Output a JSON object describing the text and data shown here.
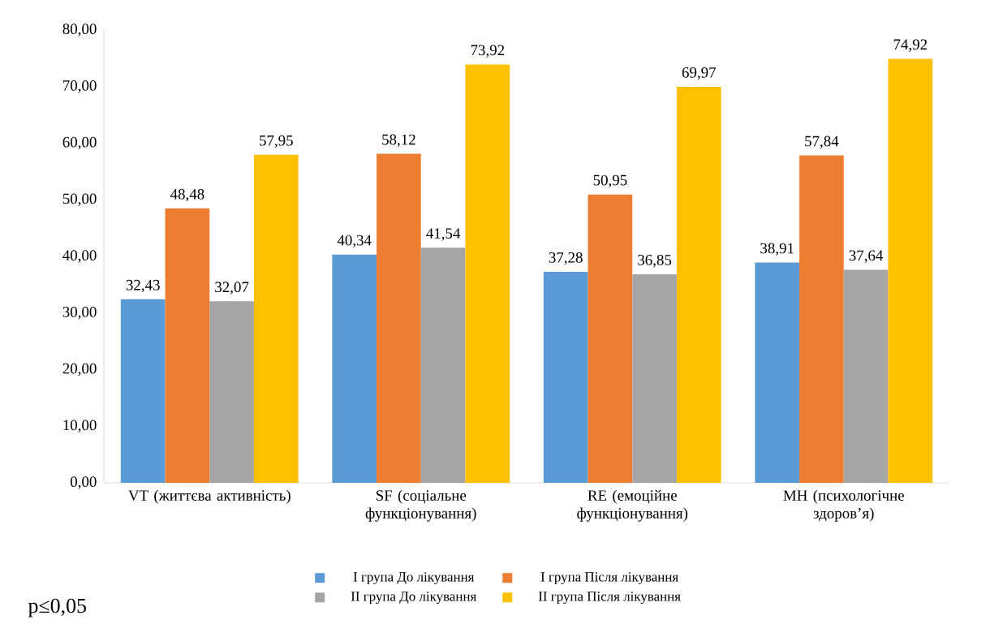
{
  "chart_data": {
    "type": "bar",
    "categories": [
      "VT (життєва активність)",
      "SF (соціальне функціонування)",
      "RE (емоційне функціонування)",
      "MH (психологічне здоров’я)"
    ],
    "series": [
      {
        "name": "I група До лікування",
        "color": "#5b9bd5",
        "values": [
          32.43,
          40.34,
          37.28,
          38.91
        ],
        "value_labels": [
          "32,43",
          "40,34",
          "37,28",
          "38,91"
        ]
      },
      {
        "name": "I група Після лікування",
        "color": "#ed7d31",
        "values": [
          48.48,
          58.12,
          50.95,
          57.84
        ],
        "value_labels": [
          "48,48",
          "58,12",
          "50,95",
          "57,84"
        ]
      },
      {
        "name": "II група До лікування",
        "color": "#a5a5a5",
        "values": [
          32.07,
          41.54,
          36.85,
          37.64
        ],
        "value_labels": [
          "32,07",
          "41,54",
          "36,85",
          "37,64"
        ]
      },
      {
        "name": "II група Після лікування",
        "color": "#ffc000",
        "values": [
          57.95,
          73.92,
          69.97,
          74.92
        ],
        "value_labels": [
          "57,95",
          "73,92",
          "69,97",
          "74,92"
        ]
      }
    ],
    "ylim": [
      0,
      80
    ],
    "yticks": [
      {
        "value": 0,
        "label": "0,00"
      },
      {
        "value": 10,
        "label": "10,00"
      },
      {
        "value": 20,
        "label": "20,00"
      },
      {
        "value": 30,
        "label": "30,00"
      },
      {
        "value": 40,
        "label": "40,00"
      },
      {
        "value": 50,
        "label": "50,00"
      },
      {
        "value": 60,
        "label": "60,00"
      },
      {
        "value": 70,
        "label": "70,00"
      },
      {
        "value": 80,
        "label": "80,00"
      }
    ],
    "legend": "bottom",
    "annotations": [
      "p≤0,05"
    ]
  }
}
